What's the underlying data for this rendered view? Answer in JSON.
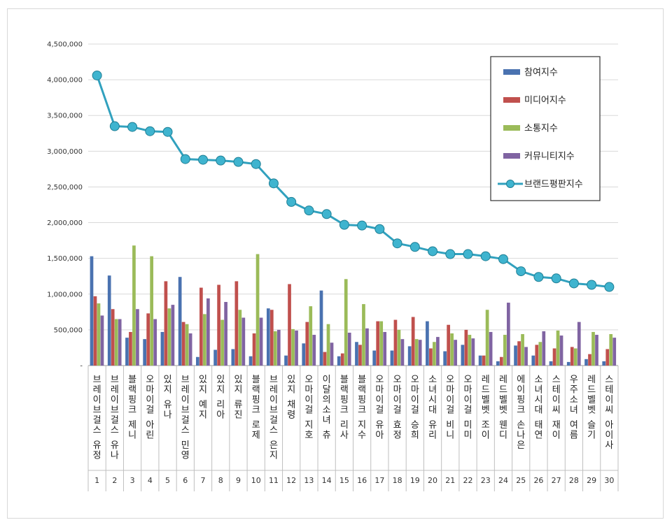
{
  "chart_data": {
    "type": "bar",
    "title": "",
    "xlabel": "",
    "ylabel": "",
    "ylim": [
      0,
      4500000
    ],
    "yticks": [
      "-",
      "500,000",
      "1,000,000",
      "1,500,000",
      "2,000,000",
      "2,500,000",
      "3,000,000",
      "3,500,000",
      "4,000,000",
      "4,500,000"
    ],
    "grid": true,
    "legend_position": "top-right",
    "categories": [
      "브레이브걸스 유정",
      "브레이브걸스 유나",
      "블랙핑크 제니",
      "오마이걸 아린",
      "있지 유나",
      "브레이브걸스 민영",
      "있지 예지",
      "있지 리아",
      "있지 류진",
      "블랙핑크 로제",
      "브레이브걸스 은지",
      "있지 채령",
      "오마이걸 지호",
      "이달의소녀 츄",
      "블랙핑크 리사",
      "블랙핑크 지수",
      "오마이걸 유아",
      "오마이걸 효정",
      "오마이걸 승희",
      "소녀시대 유리",
      "오마이걸 비니",
      "오마이걸 미미",
      "레드벨벳 조이",
      "레드벨벳 웬디",
      "에이핑크 손나은",
      "소녀시대 태연",
      "스테이씨 재이",
      "우주소녀 여름",
      "레드벨벳 슬기",
      "스테이씨 아이사"
    ],
    "index_labels": [
      "1",
      "2",
      "3",
      "4",
      "5",
      "6",
      "7",
      "8",
      "9",
      "10",
      "11",
      "12",
      "13",
      "14",
      "15",
      "16",
      "17",
      "18",
      "19",
      "20",
      "21",
      "22",
      "23",
      "24",
      "25",
      "26",
      "27",
      "28",
      "29",
      "30"
    ],
    "series": [
      {
        "name": "참여지수",
        "kind": "bar",
        "color": "#4a72b0",
        "values": [
          1530000,
          1260000,
          390000,
          370000,
          470000,
          1240000,
          120000,
          220000,
          230000,
          130000,
          800000,
          140000,
          310000,
          1050000,
          130000,
          330000,
          210000,
          210000,
          270000,
          620000,
          200000,
          290000,
          140000,
          60000,
          280000,
          140000,
          60000,
          50000,
          90000,
          60000
        ]
      },
      {
        "name": "미디어지수",
        "kind": "bar",
        "color": "#c0504d",
        "values": [
          970000,
          790000,
          470000,
          730000,
          1180000,
          610000,
          1090000,
          1130000,
          1180000,
          450000,
          780000,
          1140000,
          610000,
          190000,
          170000,
          290000,
          620000,
          640000,
          680000,
          240000,
          570000,
          500000,
          140000,
          120000,
          340000,
          290000,
          240000,
          260000,
          160000,
          230000
        ]
      },
      {
        "name": "소통지수",
        "kind": "bar",
        "color": "#9bbb59",
        "values": [
          870000,
          650000,
          1680000,
          1530000,
          800000,
          580000,
          720000,
          640000,
          780000,
          1560000,
          480000,
          510000,
          830000,
          580000,
          1210000,
          860000,
          620000,
          500000,
          370000,
          330000,
          450000,
          430000,
          780000,
          430000,
          440000,
          330000,
          490000,
          240000,
          470000,
          440000
        ]
      },
      {
        "name": "커뮤니티지수",
        "kind": "bar",
        "color": "#8064a2",
        "values": [
          700000,
          650000,
          790000,
          650000,
          850000,
          450000,
          940000,
          890000,
          670000,
          670000,
          500000,
          490000,
          430000,
          320000,
          460000,
          520000,
          470000,
          370000,
          360000,
          400000,
          360000,
          380000,
          470000,
          880000,
          260000,
          480000,
          420000,
          610000,
          430000,
          390000
        ]
      },
      {
        "name": "브랜드평판지수",
        "kind": "line",
        "color": "#31a1be",
        "values": [
          4060000,
          3350000,
          3340000,
          3280000,
          3270000,
          2890000,
          2880000,
          2870000,
          2850000,
          2820000,
          2550000,
          2290000,
          2170000,
          2120000,
          1970000,
          1960000,
          1910000,
          1710000,
          1660000,
          1600000,
          1560000,
          1560000,
          1530000,
          1490000,
          1320000,
          1240000,
          1220000,
          1150000,
          1130000,
          1100000
        ]
      }
    ]
  }
}
